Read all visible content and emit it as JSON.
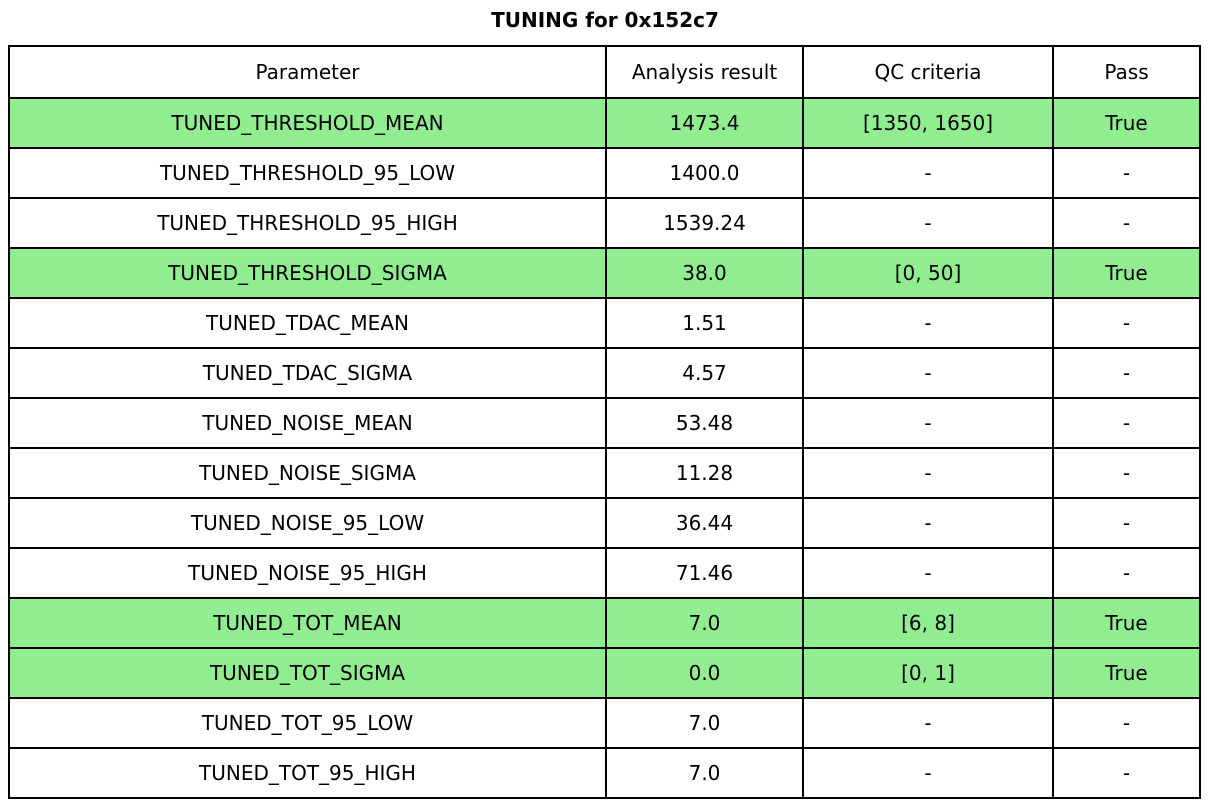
{
  "title": "TUNING for 0x152c7",
  "colors": {
    "highlight_green": "#90ee90",
    "border": "#000000",
    "background": "#ffffff",
    "text": "#000000"
  },
  "table": {
    "headers": [
      "Parameter",
      "Analysis result",
      "QC criteria",
      "Pass"
    ],
    "rows": [
      {
        "parameter": "TUNED_THRESHOLD_MEAN",
        "result": "1473.4",
        "qc": "[1350, 1650]",
        "pass": "True",
        "highlight": true
      },
      {
        "parameter": "TUNED_THRESHOLD_95_LOW",
        "result": "1400.0",
        "qc": "-",
        "pass": "-",
        "highlight": false
      },
      {
        "parameter": "TUNED_THRESHOLD_95_HIGH",
        "result": "1539.24",
        "qc": "-",
        "pass": "-",
        "highlight": false
      },
      {
        "parameter": "TUNED_THRESHOLD_SIGMA",
        "result": "38.0",
        "qc": "[0, 50]",
        "pass": "True",
        "highlight": true
      },
      {
        "parameter": "TUNED_TDAC_MEAN",
        "result": "1.51",
        "qc": "-",
        "pass": "-",
        "highlight": false
      },
      {
        "parameter": "TUNED_TDAC_SIGMA",
        "result": "4.57",
        "qc": "-",
        "pass": "-",
        "highlight": false
      },
      {
        "parameter": "TUNED_NOISE_MEAN",
        "result": "53.48",
        "qc": "-",
        "pass": "-",
        "highlight": false
      },
      {
        "parameter": "TUNED_NOISE_SIGMA",
        "result": "11.28",
        "qc": "-",
        "pass": "-",
        "highlight": false
      },
      {
        "parameter": "TUNED_NOISE_95_LOW",
        "result": "36.44",
        "qc": "-",
        "pass": "-",
        "highlight": false
      },
      {
        "parameter": "TUNED_NOISE_95_HIGH",
        "result": "71.46",
        "qc": "-",
        "pass": "-",
        "highlight": false
      },
      {
        "parameter": "TUNED_TOT_MEAN",
        "result": "7.0",
        "qc": "[6, 8]",
        "pass": "True",
        "highlight": true
      },
      {
        "parameter": "TUNED_TOT_SIGMA",
        "result": "0.0",
        "qc": "[0, 1]",
        "pass": "True",
        "highlight": true
      },
      {
        "parameter": "TUNED_TOT_95_LOW",
        "result": "7.0",
        "qc": "-",
        "pass": "-",
        "highlight": false
      },
      {
        "parameter": "TUNED_TOT_95_HIGH",
        "result": "7.0",
        "qc": "-",
        "pass": "-",
        "highlight": false
      }
    ]
  },
  "chart_data": {
    "type": "table",
    "title": "TUNING for 0x152c7",
    "columns": [
      "Parameter",
      "Analysis result",
      "QC criteria",
      "Pass"
    ],
    "rows": [
      [
        "TUNED_THRESHOLD_MEAN",
        "1473.4",
        "[1350, 1650]",
        "True"
      ],
      [
        "TUNED_THRESHOLD_95_LOW",
        "1400.0",
        "-",
        "-"
      ],
      [
        "TUNED_THRESHOLD_95_HIGH",
        "1539.24",
        "-",
        "-"
      ],
      [
        "TUNED_THRESHOLD_SIGMA",
        "38.0",
        "[0, 50]",
        "True"
      ],
      [
        "TUNED_TDAC_MEAN",
        "1.51",
        "-",
        "-"
      ],
      [
        "TUNED_TDAC_SIGMA",
        "4.57",
        "-",
        "-"
      ],
      [
        "TUNED_NOISE_MEAN",
        "53.48",
        "-",
        "-"
      ],
      [
        "TUNED_NOISE_SIGMA",
        "11.28",
        "-",
        "-"
      ],
      [
        "TUNED_NOISE_95_LOW",
        "36.44",
        "-",
        "-"
      ],
      [
        "TUNED_NOISE_95_HIGH",
        "71.46",
        "-",
        "-"
      ],
      [
        "TUNED_TOT_MEAN",
        "7.0",
        "[6, 8]",
        "True"
      ],
      [
        "TUNED_TOT_SIGMA",
        "0.0",
        "[0, 1]",
        "True"
      ],
      [
        "TUNED_TOT_95_LOW",
        "7.0",
        "-",
        "-"
      ],
      [
        "TUNED_TOT_95_HIGH",
        "7.0",
        "-",
        "-"
      ]
    ],
    "highlighted_row_indices": [
      0,
      3,
      10,
      11
    ],
    "highlight_color": "#90ee90",
    "layout": "title centered above full-width bordered table; highlighted rows indicate QC-checked parameters that passed"
  }
}
